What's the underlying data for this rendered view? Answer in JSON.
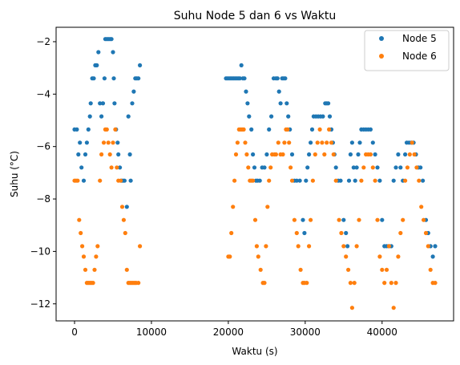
{
  "chart_data": {
    "type": "scatter",
    "title": "Suhu Node 5 dan 6 vs Waktu",
    "xlabel": "Waktu (s)",
    "ylabel": "Suhu (°C)",
    "xlim": [
      -2400,
      49300
    ],
    "ylim": [
      -12.65,
      -1.45
    ],
    "xticks": [
      0,
      10000,
      20000,
      30000,
      40000
    ],
    "xtick_labels": [
      "0",
      "10000",
      "20000",
      "30000",
      "40000"
    ],
    "yticks": [
      -2,
      -4,
      -6,
      -8,
      -10,
      -12
    ],
    "ytick_labels": [
      "−2",
      "−4",
      "−6",
      "−8",
      "−10",
      "−12"
    ],
    "legend_position": "top-right",
    "grid": false,
    "series": [
      {
        "name": "Node 5",
        "color": "#1f77b4",
        "points": [
          [
            0,
            -5.35
          ],
          [
            300,
            -5.35
          ],
          [
            500,
            -6.3
          ],
          [
            700,
            -5.85
          ],
          [
            900,
            -6.8
          ],
          [
            1200,
            -7.3
          ],
          [
            1400,
            -6.3
          ],
          [
            1600,
            -5.85
          ],
          [
            1800,
            -5.35
          ],
          [
            2000,
            -4.85
          ],
          [
            2100,
            -4.35
          ],
          [
            2300,
            -3.4
          ],
          [
            2500,
            -3.4
          ],
          [
            2700,
            -2.9
          ],
          [
            2900,
            -2.9
          ],
          [
            3100,
            -2.4
          ],
          [
            3300,
            -4.35
          ],
          [
            3500,
            -4.85
          ],
          [
            3700,
            -4.35
          ],
          [
            3900,
            -3.4
          ],
          [
            4000,
            -1.9
          ],
          [
            4200,
            -1.9
          ],
          [
            4400,
            -1.9
          ],
          [
            4600,
            -1.9
          ],
          [
            4800,
            -1.9
          ],
          [
            5000,
            -2.4
          ],
          [
            5100,
            -3.4
          ],
          [
            5200,
            -4.35
          ],
          [
            5400,
            -5.35
          ],
          [
            5600,
            -5.85
          ],
          [
            5700,
            -6.3
          ],
          [
            5900,
            -6.8
          ],
          [
            6100,
            -7.3
          ],
          [
            6300,
            -7.3
          ],
          [
            6500,
            -7.3
          ],
          [
            6800,
            -8.3
          ],
          [
            7000,
            -4.85
          ],
          [
            7200,
            -6.3
          ],
          [
            7300,
            -7.3
          ],
          [
            7500,
            -4.35
          ],
          [
            7700,
            -3.9
          ],
          [
            7900,
            -3.4
          ],
          [
            8100,
            -3.4
          ],
          [
            8300,
            -3.4
          ],
          [
            8500,
            -2.9
          ],
          [
            19700,
            -3.4
          ],
          [
            19900,
            -3.4
          ],
          [
            20100,
            -3.4
          ],
          [
            20300,
            -3.4
          ],
          [
            20500,
            -3.4
          ],
          [
            20700,
            -3.4
          ],
          [
            20900,
            -3.4
          ],
          [
            21100,
            -3.4
          ],
          [
            21300,
            -3.4
          ],
          [
            21500,
            -3.4
          ],
          [
            21700,
            -2.9
          ],
          [
            21900,
            -3.4
          ],
          [
            22100,
            -3.4
          ],
          [
            22300,
            -3.9
          ],
          [
            22500,
            -4.35
          ],
          [
            22700,
            -4.85
          ],
          [
            23000,
            -5.35
          ],
          [
            23200,
            -6.3
          ],
          [
            23400,
            -6.8
          ],
          [
            23600,
            -7.3
          ],
          [
            23800,
            -7.3
          ],
          [
            24100,
            -7.3
          ],
          [
            24400,
            -6.8
          ],
          [
            24700,
            -6.8
          ],
          [
            25000,
            -6.3
          ],
          [
            25300,
            -5.35
          ],
          [
            25600,
            -4.85
          ],
          [
            25900,
            -3.4
          ],
          [
            26200,
            -3.4
          ],
          [
            26400,
            -3.4
          ],
          [
            26600,
            -3.9
          ],
          [
            26800,
            -4.35
          ],
          [
            27000,
            -3.4
          ],
          [
            27200,
            -3.4
          ],
          [
            27400,
            -3.4
          ],
          [
            27600,
            -4.35
          ],
          [
            27800,
            -4.85
          ],
          [
            28000,
            -5.35
          ],
          [
            28300,
            -6.3
          ],
          [
            28600,
            -7.3
          ],
          [
            28900,
            -7.3
          ],
          [
            29300,
            -7.3
          ],
          [
            29700,
            -8.8
          ],
          [
            29900,
            -9.3
          ],
          [
            30100,
            -7.3
          ],
          [
            30300,
            -6.8
          ],
          [
            30500,
            -6.3
          ],
          [
            30700,
            -5.85
          ],
          [
            30900,
            -5.35
          ],
          [
            31100,
            -4.85
          ],
          [
            31400,
            -4.85
          ],
          [
            31700,
            -4.85
          ],
          [
            32000,
            -4.85
          ],
          [
            32300,
            -4.85
          ],
          [
            32600,
            -4.35
          ],
          [
            32800,
            -4.35
          ],
          [
            33000,
            -4.35
          ],
          [
            33200,
            -4.85
          ],
          [
            33400,
            -5.35
          ],
          [
            33600,
            -5.85
          ],
          [
            33800,
            -6.3
          ],
          [
            34000,
            -6.8
          ],
          [
            34300,
            -7.3
          ],
          [
            34600,
            -7.3
          ],
          [
            35000,
            -8.8
          ],
          [
            35300,
            -9.3
          ],
          [
            35500,
            -9.8
          ],
          [
            35700,
            -7.3
          ],
          [
            35900,
            -6.3
          ],
          [
            36100,
            -5.85
          ],
          [
            36300,
            -6.8
          ],
          [
            36500,
            -7.3
          ],
          [
            36700,
            -6.8
          ],
          [
            36900,
            -6.3
          ],
          [
            37100,
            -5.85
          ],
          [
            37300,
            -5.35
          ],
          [
            37600,
            -5.35
          ],
          [
            37900,
            -5.35
          ],
          [
            38200,
            -5.35
          ],
          [
            38500,
            -5.35
          ],
          [
            38800,
            -5.85
          ],
          [
            39100,
            -6.3
          ],
          [
            39400,
            -6.8
          ],
          [
            39700,
            -7.3
          ],
          [
            40000,
            -8.8
          ],
          [
            40300,
            -9.8
          ],
          [
            40600,
            -9.8
          ],
          [
            40900,
            -9.8
          ],
          [
            41200,
            -9.8
          ],
          [
            41500,
            -7.3
          ],
          [
            41800,
            -6.8
          ],
          [
            42100,
            -6.3
          ],
          [
            42400,
            -6.8
          ],
          [
            42700,
            -7.3
          ],
          [
            43000,
            -6.3
          ],
          [
            43200,
            -5.85
          ],
          [
            43500,
            -5.85
          ],
          [
            43800,
            -5.85
          ],
          [
            44100,
            -5.85
          ],
          [
            44400,
            -6.3
          ],
          [
            44700,
            -6.8
          ],
          [
            45000,
            -6.8
          ],
          [
            45300,
            -7.3
          ],
          [
            45700,
            -8.8
          ],
          [
            46000,
            -9.3
          ],
          [
            46300,
            -9.8
          ],
          [
            46600,
            -10.2
          ],
          [
            46900,
            -9.8
          ]
        ]
      },
      {
        "name": "Node 6",
        "color": "#ff7f0e",
        "points": [
          [
            0,
            -7.3
          ],
          [
            200,
            -7.3
          ],
          [
            400,
            -7.3
          ],
          [
            600,
            -8.8
          ],
          [
            800,
            -9.3
          ],
          [
            1000,
            -9.8
          ],
          [
            1200,
            -10.2
          ],
          [
            1400,
            -10.7
          ],
          [
            1600,
            -11.2
          ],
          [
            1800,
            -11.2
          ],
          [
            2000,
            -11.2
          ],
          [
            2200,
            -11.2
          ],
          [
            2400,
            -11.2
          ],
          [
            2600,
            -10.7
          ],
          [
            2800,
            -10.2
          ],
          [
            3000,
            -9.8
          ],
          [
            3300,
            -7.3
          ],
          [
            3500,
            -6.3
          ],
          [
            3800,
            -5.85
          ],
          [
            4000,
            -5.35
          ],
          [
            4200,
            -5.35
          ],
          [
            4400,
            -5.85
          ],
          [
            4600,
            -6.3
          ],
          [
            4800,
            -6.8
          ],
          [
            5000,
            -5.85
          ],
          [
            5300,
            -5.35
          ],
          [
            5500,
            -6.8
          ],
          [
            5700,
            -7.3
          ],
          [
            6000,
            -7.3
          ],
          [
            6200,
            -8.3
          ],
          [
            6400,
            -8.8
          ],
          [
            6600,
            -9.3
          ],
          [
            6800,
            -10.7
          ],
          [
            7000,
            -11.2
          ],
          [
            7200,
            -11.2
          ],
          [
            7400,
            -11.2
          ],
          [
            7600,
            -11.2
          ],
          [
            7800,
            -11.2
          ],
          [
            8000,
            -11.2
          ],
          [
            8300,
            -11.2
          ],
          [
            8500,
            -9.8
          ],
          [
            20000,
            -10.2
          ],
          [
            20200,
            -10.2
          ],
          [
            20400,
            -9.3
          ],
          [
            20600,
            -8.3
          ],
          [
            20800,
            -7.3
          ],
          [
            21000,
            -6.3
          ],
          [
            21200,
            -5.85
          ],
          [
            21400,
            -5.35
          ],
          [
            21600,
            -5.35
          ],
          [
            21800,
            -5.35
          ],
          [
            22000,
            -5.35
          ],
          [
            22200,
            -5.85
          ],
          [
            22400,
            -6.3
          ],
          [
            22600,
            -6.8
          ],
          [
            22800,
            -7.3
          ],
          [
            23000,
            -7.3
          ],
          [
            23200,
            -7.3
          ],
          [
            23500,
            -8.8
          ],
          [
            23700,
            -9.8
          ],
          [
            23900,
            -10.2
          ],
          [
            24200,
            -10.7
          ],
          [
            24500,
            -11.2
          ],
          [
            24700,
            -11.2
          ],
          [
            24900,
            -9.8
          ],
          [
            25100,
            -8.3
          ],
          [
            25300,
            -7.3
          ],
          [
            25500,
            -6.8
          ],
          [
            25700,
            -6.3
          ],
          [
            26000,
            -6.3
          ],
          [
            26200,
            -6.3
          ],
          [
            26500,
            -5.85
          ],
          [
            26800,
            -6.3
          ],
          [
            27100,
            -6.3
          ],
          [
            27300,
            -5.85
          ],
          [
            27500,
            -5.35
          ],
          [
            27700,
            -5.35
          ],
          [
            27900,
            -5.85
          ],
          [
            28100,
            -6.8
          ],
          [
            28300,
            -7.3
          ],
          [
            28600,
            -8.8
          ],
          [
            28900,
            -9.3
          ],
          [
            29100,
            -9.8
          ],
          [
            29400,
            -10.7
          ],
          [
            29700,
            -11.2
          ],
          [
            29900,
            -11.2
          ],
          [
            30200,
            -11.2
          ],
          [
            30500,
            -9.8
          ],
          [
            30700,
            -8.8
          ],
          [
            31000,
            -7.3
          ],
          [
            31300,
            -6.3
          ],
          [
            31600,
            -5.85
          ],
          [
            31900,
            -5.35
          ],
          [
            32200,
            -5.85
          ],
          [
            32500,
            -6.3
          ],
          [
            32800,
            -5.85
          ],
          [
            33100,
            -5.35
          ],
          [
            33400,
            -5.85
          ],
          [
            33700,
            -6.3
          ],
          [
            34000,
            -7.3
          ],
          [
            34400,
            -8.8
          ],
          [
            34700,
            -9.3
          ],
          [
            35000,
            -9.8
          ],
          [
            35300,
            -10.2
          ],
          [
            35600,
            -10.7
          ],
          [
            35900,
            -11.2
          ],
          [
            36100,
            -12.15
          ],
          [
            36400,
            -11.2
          ],
          [
            36700,
            -9.8
          ],
          [
            37000,
            -8.8
          ],
          [
            37300,
            -7.3
          ],
          [
            37600,
            -6.8
          ],
          [
            37900,
            -6.3
          ],
          [
            38200,
            -6.3
          ],
          [
            38500,
            -6.3
          ],
          [
            38800,
            -6.8
          ],
          [
            39100,
            -7.3
          ],
          [
            39400,
            -8.8
          ],
          [
            39700,
            -10.2
          ],
          [
            40000,
            -10.7
          ],
          [
            40300,
            -11.2
          ],
          [
            40600,
            -10.7
          ],
          [
            40900,
            -9.8
          ],
          [
            41200,
            -11.2
          ],
          [
            41500,
            -12.15
          ],
          [
            41800,
            -11.2
          ],
          [
            42100,
            -10.2
          ],
          [
            42400,
            -9.3
          ],
          [
            42700,
            -8.8
          ],
          [
            43000,
            -7.3
          ],
          [
            43300,
            -6.8
          ],
          [
            43600,
            -6.3
          ],
          [
            43900,
            -5.85
          ],
          [
            44200,
            -6.3
          ],
          [
            44500,
            -6.8
          ],
          [
            44800,
            -7.3
          ],
          [
            45100,
            -8.3
          ],
          [
            45400,
            -8.8
          ],
          [
            45700,
            -9.3
          ],
          [
            46000,
            -9.8
          ],
          [
            46300,
            -10.7
          ],
          [
            46600,
            -11.2
          ],
          [
            46900,
            -11.2
          ]
        ]
      }
    ]
  }
}
